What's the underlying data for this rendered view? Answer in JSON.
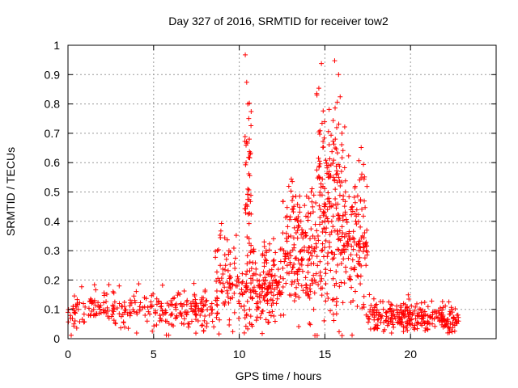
{
  "chart_data": {
    "type": "scatter",
    "title": "Day 327 of 2016, SRMTID for receiver tow2",
    "xlabel": "GPS time / hours",
    "ylabel": "SRMTID / TECUs",
    "xlim": [
      0,
      25
    ],
    "ylim": [
      0,
      1
    ],
    "grid": true,
    "marker": "plus",
    "color": "#ff0000",
    "xticks": [
      0,
      5,
      10,
      15,
      20
    ],
    "yticks": [
      0,
      0.1,
      0.2,
      0.3,
      0.4,
      0.5,
      0.6,
      0.7,
      0.8,
      0.9,
      1
    ],
    "ytick_labels": [
      "0",
      "0.1",
      "0.2",
      "0.3",
      "0.4",
      "0.5",
      "0.6",
      "0.7",
      "0.8",
      "0.9",
      "1"
    ],
    "series": [
      {
        "name": "tow2",
        "x": [
          0.0,
          0.3,
          0.6,
          0.9,
          1.2,
          1.5,
          1.8,
          2.1,
          2.4,
          2.7,
          3.0,
          3.3,
          3.6,
          3.9,
          4.2,
          4.5,
          4.8,
          5.1,
          5.4,
          5.7,
          6.0,
          6.3,
          6.6,
          6.9,
          7.2,
          7.5,
          7.8,
          8.1,
          8.4,
          8.7,
          9.0,
          9.2,
          9.4,
          9.6,
          9.8,
          10.0,
          10.2,
          10.4,
          10.5,
          10.6,
          10.8,
          11.0,
          11.2,
          11.4,
          11.6,
          11.8,
          12.0,
          12.2,
          12.4,
          12.6,
          12.8,
          13.0,
          13.2,
          13.4,
          13.6,
          13.8,
          14.0,
          14.2,
          14.4,
          14.6,
          14.8,
          15.0,
          15.2,
          15.4,
          15.6,
          15.8,
          16.0,
          16.2,
          16.4,
          16.6,
          16.8,
          17.0,
          17.2,
          17.4,
          17.6,
          17.8,
          18.0,
          18.3,
          18.6,
          18.9,
          19.2,
          19.5,
          19.8,
          20.1,
          20.4,
          20.7,
          21.0,
          21.3,
          21.6,
          21.9,
          22.2,
          22.5,
          22.8
        ],
        "y": [
          0.09,
          0.11,
          0.1,
          0.12,
          0.08,
          0.1,
          0.11,
          0.09,
          0.07,
          0.1,
          0.12,
          0.11,
          0.09,
          0.13,
          0.1,
          0.08,
          0.11,
          0.09,
          0.07,
          0.06,
          0.08,
          0.1,
          0.12,
          0.09,
          0.11,
          0.08,
          0.1,
          0.13,
          0.12,
          0.14,
          0.16,
          0.25,
          0.3,
          0.14,
          0.18,
          0.12,
          0.15,
          0.6,
          0.8,
          0.1,
          0.2,
          0.12,
          0.18,
          0.2,
          0.15,
          0.22,
          0.25,
          0.18,
          0.21,
          0.3,
          0.25,
          0.35,
          0.32,
          0.22,
          0.4,
          0.3,
          0.25,
          0.5,
          0.2,
          0.35,
          0.3,
          0.45,
          0.55,
          0.4,
          0.65,
          0.9,
          0.7,
          0.5,
          0.35,
          0.45,
          0.4,
          0.3,
          0.35,
          0.25,
          0.15,
          0.1,
          0.08,
          0.07,
          0.09,
          0.08,
          0.1,
          0.07,
          0.06,
          0.05,
          0.08,
          0.07,
          0.06,
          0.09,
          0.07,
          0.08,
          0.06,
          0.07,
          0.06
        ]
      }
    ],
    "clusters": [
      {
        "x": [
          0,
          9
        ],
        "center": 0.1,
        "spread": 0.035,
        "count": 260
      },
      {
        "x": [
          8.6,
          9.9
        ],
        "center": 0.2,
        "spread": 0.09,
        "count": 70
      },
      {
        "x": [
          9.9,
          10.5
        ],
        "center": 0.14,
        "spread": 0.06,
        "count": 30
      },
      {
        "x": [
          10.3,
          10.7
        ],
        "center": 0.55,
        "spread": 0.18,
        "count": 45
      },
      {
        "x": [
          10.6,
          12.5
        ],
        "center": 0.18,
        "spread": 0.07,
        "count": 150
      },
      {
        "x": [
          12.5,
          14.5
        ],
        "center": 0.3,
        "spread": 0.12,
        "count": 170
      },
      {
        "x": [
          14.5,
          16.2
        ],
        "center": 0.42,
        "spread": 0.18,
        "count": 220
      },
      {
        "x": [
          16.2,
          17.5
        ],
        "center": 0.33,
        "spread": 0.13,
        "count": 110
      },
      {
        "x": [
          17.5,
          22.8
        ],
        "center": 0.075,
        "spread": 0.025,
        "count": 260
      }
    ]
  }
}
